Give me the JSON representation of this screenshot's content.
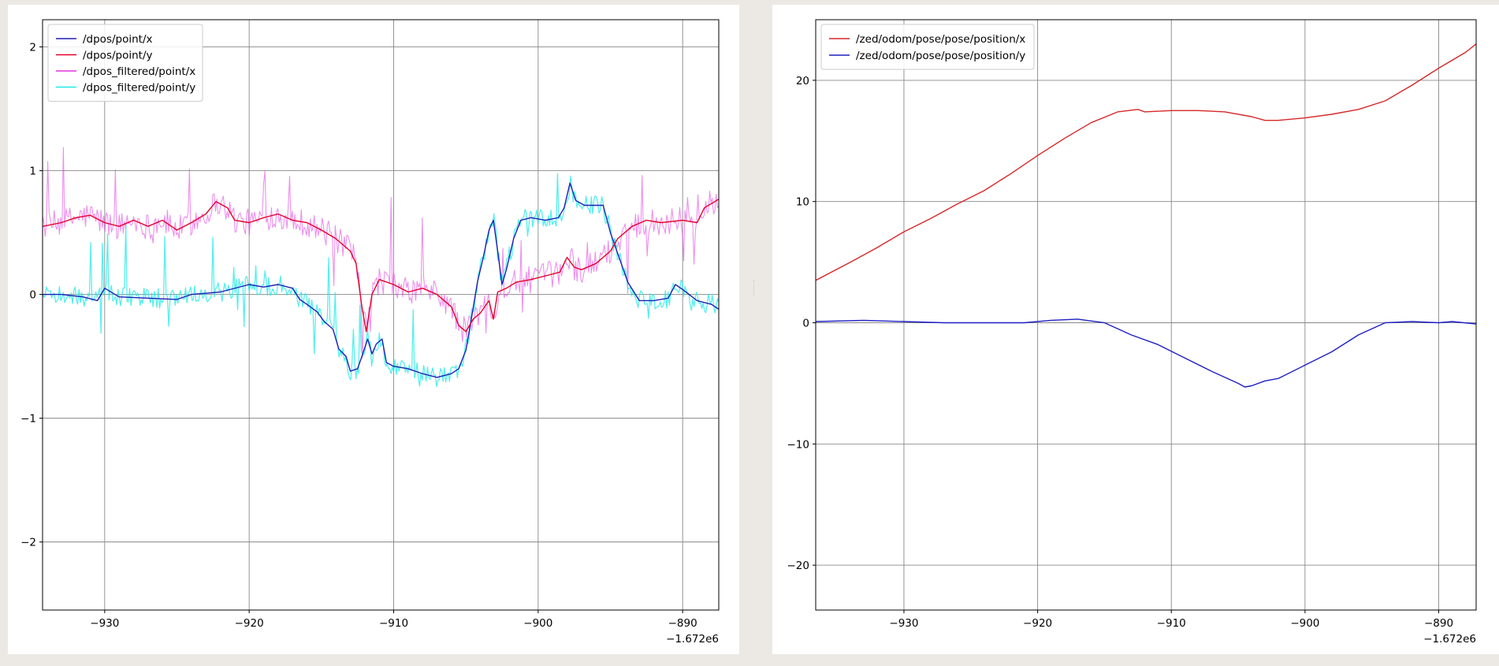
{
  "chart_data": [
    {
      "type": "line",
      "title": "",
      "xlabel": "",
      "ylabel": "",
      "x_offset_label": "−1.672e6",
      "xlim": [
        -934.3,
        -887.5
      ],
      "ylim": [
        -2.55,
        2.22
      ],
      "xticks": [
        -930,
        -920,
        -910,
        -900,
        -890
      ],
      "xtick_labels": [
        "−930",
        "−920",
        "−910",
        "−900",
        "−890"
      ],
      "yticks": [
        2,
        1,
        0,
        -1,
        -2
      ],
      "ytick_labels": [
        "2",
        "1",
        "0",
        "−1",
        "−2"
      ],
      "grid": true,
      "legend_position": "top-left",
      "series": [
        {
          "name": "/dpos/point/x",
          "color": "#1f1fb4",
          "points": [
            [
              -934.3,
              0.0
            ],
            [
              -933,
              0.0
            ],
            [
              -931.5,
              -0.02
            ],
            [
              -930.5,
              -0.05
            ],
            [
              -930,
              0.05
            ],
            [
              -929,
              -0.02
            ],
            [
              -927,
              -0.03
            ],
            [
              -925,
              -0.04
            ],
            [
              -924,
              0.0
            ],
            [
              -922,
              0.02
            ],
            [
              -920,
              0.08
            ],
            [
              -919,
              0.06
            ],
            [
              -918,
              0.08
            ],
            [
              -917,
              0.05
            ],
            [
              -916.5,
              -0.04
            ],
            [
              -916,
              -0.08
            ],
            [
              -915.3,
              -0.14
            ],
            [
              -914.8,
              -0.22
            ],
            [
              -914.2,
              -0.28
            ],
            [
              -913.8,
              -0.44
            ],
            [
              -913.3,
              -0.5
            ],
            [
              -913,
              -0.62
            ],
            [
              -912.5,
              -0.6
            ],
            [
              -912.2,
              -0.5
            ],
            [
              -911.8,
              -0.36
            ],
            [
              -911.5,
              -0.48
            ],
            [
              -911.2,
              -0.4
            ],
            [
              -910.8,
              -0.36
            ],
            [
              -910.5,
              -0.55
            ],
            [
              -910,
              -0.58
            ],
            [
              -909,
              -0.6
            ],
            [
              -908,
              -0.64
            ],
            [
              -907,
              -0.67
            ],
            [
              -906,
              -0.64
            ],
            [
              -905.5,
              -0.6
            ],
            [
              -905,
              -0.45
            ],
            [
              -904.6,
              -0.18
            ],
            [
              -904.2,
              0.1
            ],
            [
              -903.8,
              0.3
            ],
            [
              -903.4,
              0.52
            ],
            [
              -903.1,
              0.6
            ],
            [
              -902.8,
              0.35
            ],
            [
              -902.5,
              0.08
            ],
            [
              -902.2,
              0.2
            ],
            [
              -901.7,
              0.45
            ],
            [
              -901.2,
              0.6
            ],
            [
              -900.5,
              0.62
            ],
            [
              -899.5,
              0.6
            ],
            [
              -898.6,
              0.62
            ],
            [
              -898.2,
              0.7
            ],
            [
              -897.8,
              0.9
            ],
            [
              -897.4,
              0.76
            ],
            [
              -896.8,
              0.72
            ],
            [
              -895.5,
              0.72
            ],
            [
              -895,
              0.5
            ],
            [
              -894.4,
              0.3
            ],
            [
              -893.8,
              0.1
            ],
            [
              -893,
              -0.05
            ],
            [
              -892,
              -0.05
            ],
            [
              -891,
              -0.03
            ],
            [
              -890.5,
              0.08
            ],
            [
              -890,
              0.04
            ],
            [
              -889,
              -0.05
            ],
            [
              -888,
              -0.08
            ],
            [
              -887.5,
              -0.12
            ]
          ]
        },
        {
          "name": "/dpos/point/y",
          "color": "#e5002b",
          "points": [
            [
              -934.3,
              0.55
            ],
            [
              -933,
              0.58
            ],
            [
              -932,
              0.62
            ],
            [
              -931,
              0.64
            ],
            [
              -930,
              0.58
            ],
            [
              -929,
              0.55
            ],
            [
              -928,
              0.6
            ],
            [
              -927,
              0.55
            ],
            [
              -926,
              0.6
            ],
            [
              -925,
              0.52
            ],
            [
              -924,
              0.58
            ],
            [
              -923,
              0.65
            ],
            [
              -922.3,
              0.75
            ],
            [
              -921.5,
              0.7
            ],
            [
              -921,
              0.6
            ],
            [
              -920,
              0.58
            ],
            [
              -919,
              0.62
            ],
            [
              -918,
              0.65
            ],
            [
              -917,
              0.6
            ],
            [
              -916,
              0.58
            ],
            [
              -915,
              0.52
            ],
            [
              -914,
              0.45
            ],
            [
              -913,
              0.35
            ],
            [
              -912.6,
              0.25
            ],
            [
              -912.2,
              -0.1
            ],
            [
              -911.9,
              -0.3
            ],
            [
              -911.5,
              0.0
            ],
            [
              -911,
              0.12
            ],
            [
              -910,
              0.08
            ],
            [
              -909,
              0.02
            ],
            [
              -908,
              0.05
            ],
            [
              -907,
              0.0
            ],
            [
              -906,
              -0.1
            ],
            [
              -905.5,
              -0.25
            ],
            [
              -905,
              -0.3
            ],
            [
              -904.5,
              -0.2
            ],
            [
              -904,
              -0.15
            ],
            [
              -903.4,
              -0.05
            ],
            [
              -903.1,
              -0.2
            ],
            [
              -902.8,
              0.02
            ],
            [
              -902.2,
              0.05
            ],
            [
              -901.5,
              0.1
            ],
            [
              -900.5,
              0.12
            ],
            [
              -899.5,
              0.15
            ],
            [
              -898.5,
              0.18
            ],
            [
              -898,
              0.3
            ],
            [
              -897.5,
              0.22
            ],
            [
              -897,
              0.2
            ],
            [
              -896,
              0.25
            ],
            [
              -895,
              0.35
            ],
            [
              -894.5,
              0.45
            ],
            [
              -893.5,
              0.55
            ],
            [
              -892.5,
              0.6
            ],
            [
              -891.5,
              0.58
            ],
            [
              -890,
              0.6
            ],
            [
              -889,
              0.58
            ],
            [
              -888.5,
              0.7
            ],
            [
              -887.5,
              0.77
            ]
          ]
        },
        {
          "name": "/dpos_filtered/point/x",
          "color": "#dd33dd",
          "points": []
        },
        {
          "name": "/dpos_filtered/point/y",
          "color": "#1ee9e6",
          "points": []
        }
      ]
    },
    {
      "type": "line",
      "title": "",
      "xlabel": "",
      "ylabel": "",
      "x_offset_label": "−1.672e6",
      "xlim": [
        -936.6,
        -887.2
      ],
      "ylim": [
        -23.7,
        25.0
      ],
      "xticks": [
        -930,
        -920,
        -910,
        -900,
        -890
      ],
      "xtick_labels": [
        "−930",
        "−920",
        "−910",
        "−900",
        "−890"
      ],
      "yticks": [
        20,
        10,
        0,
        -10,
        -20
      ],
      "ytick_labels": [
        "20",
        "10",
        "0",
        "−10",
        "−20"
      ],
      "grid": true,
      "legend_position": "top-left",
      "series": [
        {
          "name": "/zed/odom/pose/pose/position/x",
          "color": "#d62728",
          "points": [
            [
              -936.6,
              3.5
            ],
            [
              -934,
              5.0
            ],
            [
              -932,
              6.2
            ],
            [
              -930,
              7.5
            ],
            [
              -928,
              8.6
            ],
            [
              -926,
              9.8
            ],
            [
              -924,
              10.9
            ],
            [
              -922,
              12.3
            ],
            [
              -920,
              13.8
            ],
            [
              -918,
              15.2
            ],
            [
              -916,
              16.5
            ],
            [
              -914,
              17.4
            ],
            [
              -912.5,
              17.6
            ],
            [
              -912,
              17.4
            ],
            [
              -910,
              17.5
            ],
            [
              -908,
              17.5
            ],
            [
              -906,
              17.4
            ],
            [
              -904,
              17.0
            ],
            [
              -903,
              16.7
            ],
            [
              -902,
              16.7
            ],
            [
              -900,
              16.9
            ],
            [
              -898,
              17.2
            ],
            [
              -896,
              17.6
            ],
            [
              -894,
              18.3
            ],
            [
              -892,
              19.6
            ],
            [
              -890,
              21.0
            ],
            [
              -888,
              22.3
            ],
            [
              -887.2,
              23.0
            ]
          ]
        },
        {
          "name": "/zed/odom/pose/pose/position/y",
          "color": "#1f1fc4",
          "points": [
            [
              -936.6,
              0.1
            ],
            [
              -933,
              0.2
            ],
            [
              -930,
              0.1
            ],
            [
              -927,
              0.0
            ],
            [
              -924,
              0.0
            ],
            [
              -921,
              0.0
            ],
            [
              -919,
              0.2
            ],
            [
              -917,
              0.3
            ],
            [
              -915,
              0.0
            ],
            [
              -913,
              -1.0
            ],
            [
              -911,
              -1.8
            ],
            [
              -909,
              -2.9
            ],
            [
              -907,
              -4.0
            ],
            [
              -905,
              -5.0
            ],
            [
              -904.5,
              -5.3
            ],
            [
              -904,
              -5.2
            ],
            [
              -903,
              -4.8
            ],
            [
              -902,
              -4.6
            ],
            [
              -900,
              -3.5
            ],
            [
              -898,
              -2.4
            ],
            [
              -896,
              -1.0
            ],
            [
              -894,
              0.0
            ],
            [
              -892,
              0.1
            ],
            [
              -890,
              0.0
            ],
            [
              -889,
              0.1
            ],
            [
              -887.2,
              -0.1
            ]
          ]
        }
      ]
    }
  ]
}
